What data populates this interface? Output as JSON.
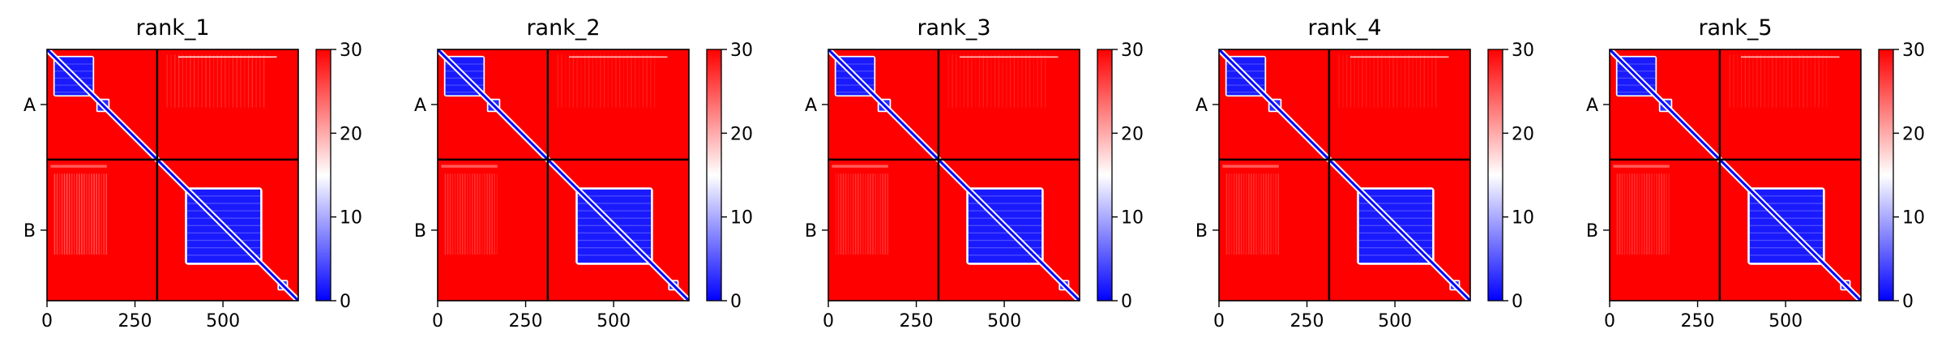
{
  "chart_data": [
    {
      "type": "heatmap",
      "title": "rank_1",
      "chain_labels": [
        "A",
        "B"
      ],
      "x_ticks": [
        0,
        250,
        500
      ],
      "x_range": [
        0,
        714
      ],
      "chain_boundary": 313,
      "colorbar": {
        "min": 0,
        "max": 30,
        "ticks": [
          0,
          10,
          20,
          30
        ],
        "colors": [
          "#0000ff",
          "#ffffff",
          "#ff0000"
        ]
      }
    },
    {
      "type": "heatmap",
      "title": "rank_2",
      "chain_labels": [
        "A",
        "B"
      ],
      "x_ticks": [
        0,
        250,
        500
      ],
      "x_range": [
        0,
        714
      ],
      "chain_boundary": 313,
      "colorbar": {
        "min": 0,
        "max": 30,
        "ticks": [
          0,
          10,
          20,
          30
        ],
        "colors": [
          "#0000ff",
          "#ffffff",
          "#ff0000"
        ]
      }
    },
    {
      "type": "heatmap",
      "title": "rank_3",
      "chain_labels": [
        "A",
        "B"
      ],
      "x_ticks": [
        0,
        250,
        500
      ],
      "x_range": [
        0,
        714
      ],
      "chain_boundary": 313,
      "colorbar": {
        "min": 0,
        "max": 30,
        "ticks": [
          0,
          10,
          20,
          30
        ],
        "colors": [
          "#0000ff",
          "#ffffff",
          "#ff0000"
        ]
      }
    },
    {
      "type": "heatmap",
      "title": "rank_4",
      "chain_labels": [
        "A",
        "B"
      ],
      "x_ticks": [
        0,
        250,
        500
      ],
      "x_range": [
        0,
        714
      ],
      "chain_boundary": 313,
      "colorbar": {
        "min": 0,
        "max": 30,
        "ticks": [
          0,
          10,
          20,
          30
        ],
        "colors": [
          "#0000ff",
          "#ffffff",
          "#ff0000"
        ]
      }
    },
    {
      "type": "heatmap",
      "title": "rank_5",
      "chain_labels": [
        "A",
        "B"
      ],
      "x_ticks": [
        0,
        250,
        500
      ],
      "x_range": [
        0,
        714
      ],
      "chain_boundary": 313,
      "colorbar": {
        "min": 0,
        "max": 30,
        "ticks": [
          0,
          10,
          20,
          30
        ],
        "colors": [
          "#0000ff",
          "#ffffff",
          "#ff0000"
        ]
      }
    }
  ]
}
